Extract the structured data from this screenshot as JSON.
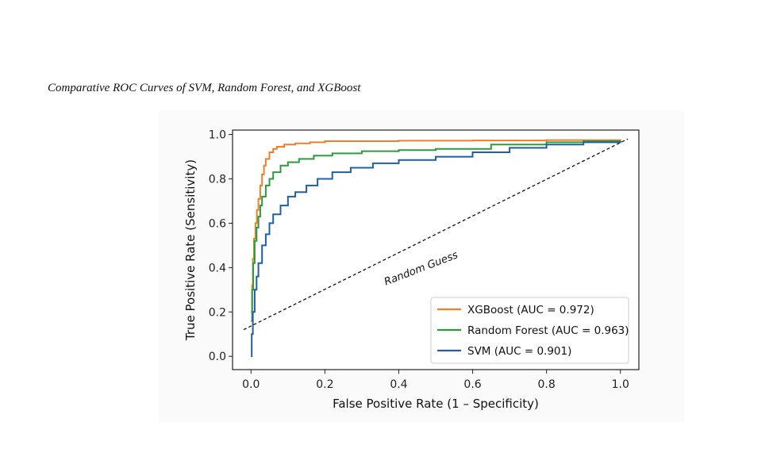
{
  "caption": "Comparative ROC Curves of SVM, Random Forest, and XGBoost",
  "chart_data": {
    "type": "line",
    "title": "",
    "xlabel": "False Positive Rate (1 – Specificity)",
    "ylabel": "True Positive Rate (Sensitivity)",
    "xlim": [
      -0.05,
      1.05
    ],
    "ylim": [
      -0.06,
      1.02
    ],
    "xticks": [
      0.0,
      0.2,
      0.4,
      0.6,
      0.8,
      1.0
    ],
    "xtick_labels": [
      "0.0",
      "0.2",
      "0.4",
      "0.6",
      "0.8",
      "1.0"
    ],
    "yticks": [
      0.0,
      0.2,
      0.4,
      0.6,
      0.8,
      1.0
    ],
    "ytick_labels": [
      "0.0",
      "0.2",
      "0.4",
      "0.6",
      "0.8",
      "1.0"
    ],
    "grid": false,
    "legend_position": "bottom-right",
    "series": [
      {
        "name": "XGBoost",
        "legend_label": "XGBoost (AUC = 0.972)",
        "auc": 0.972,
        "color": "#f07f2a",
        "x": [
          0.0,
          0.003,
          0.005,
          0.008,
          0.012,
          0.016,
          0.02,
          0.025,
          0.03,
          0.035,
          0.04,
          0.05,
          0.06,
          0.07,
          0.09,
          0.12,
          0.16,
          0.2,
          0.28,
          0.4,
          0.6,
          0.8,
          1.0
        ],
        "y": [
          0.2,
          0.32,
          0.44,
          0.53,
          0.6,
          0.66,
          0.71,
          0.77,
          0.82,
          0.86,
          0.89,
          0.92,
          0.935,
          0.945,
          0.955,
          0.96,
          0.965,
          0.97,
          0.97,
          0.972,
          0.973,
          0.975,
          0.978
        ]
      },
      {
        "name": "Random Forest",
        "legend_label": "Random Forest (AUC = 0.963)",
        "auc": 0.963,
        "color": "#2c9b3f",
        "x": [
          0.0,
          0.003,
          0.006,
          0.01,
          0.015,
          0.02,
          0.025,
          0.03,
          0.04,
          0.05,
          0.06,
          0.08,
          0.1,
          0.13,
          0.17,
          0.22,
          0.3,
          0.4,
          0.5,
          0.65,
          0.8,
          0.9,
          1.0
        ],
        "y": [
          0.16,
          0.3,
          0.42,
          0.52,
          0.58,
          0.63,
          0.68,
          0.72,
          0.77,
          0.8,
          0.83,
          0.86,
          0.875,
          0.89,
          0.905,
          0.915,
          0.925,
          0.93,
          0.935,
          0.955,
          0.965,
          0.97,
          0.975
        ]
      },
      {
        "name": "SVM",
        "legend_label": "SVM (AUC = 0.901)",
        "auc": 0.901,
        "color": "#1f5fa8",
        "x": [
          0.0,
          0.002,
          0.005,
          0.01,
          0.015,
          0.02,
          0.03,
          0.04,
          0.05,
          0.06,
          0.08,
          0.1,
          0.12,
          0.15,
          0.18,
          0.22,
          0.27,
          0.33,
          0.4,
          0.5,
          0.6,
          0.7,
          0.8,
          0.9,
          1.0
        ],
        "y": [
          0.0,
          0.1,
          0.2,
          0.3,
          0.36,
          0.42,
          0.5,
          0.55,
          0.6,
          0.64,
          0.68,
          0.72,
          0.74,
          0.77,
          0.8,
          0.83,
          0.85,
          0.87,
          0.885,
          0.9,
          0.92,
          0.94,
          0.955,
          0.965,
          0.97
        ]
      }
    ],
    "reference_line": {
      "name": "Random Guess",
      "x": [
        -0.02,
        1.02
      ],
      "y": [
        0.12,
        0.98
      ],
      "style": "dashed",
      "color": "#111111"
    },
    "annotations": [
      {
        "text": "Random Guess",
        "x": 0.365,
        "y": 0.32,
        "rotation_deg": -21
      }
    ]
  }
}
